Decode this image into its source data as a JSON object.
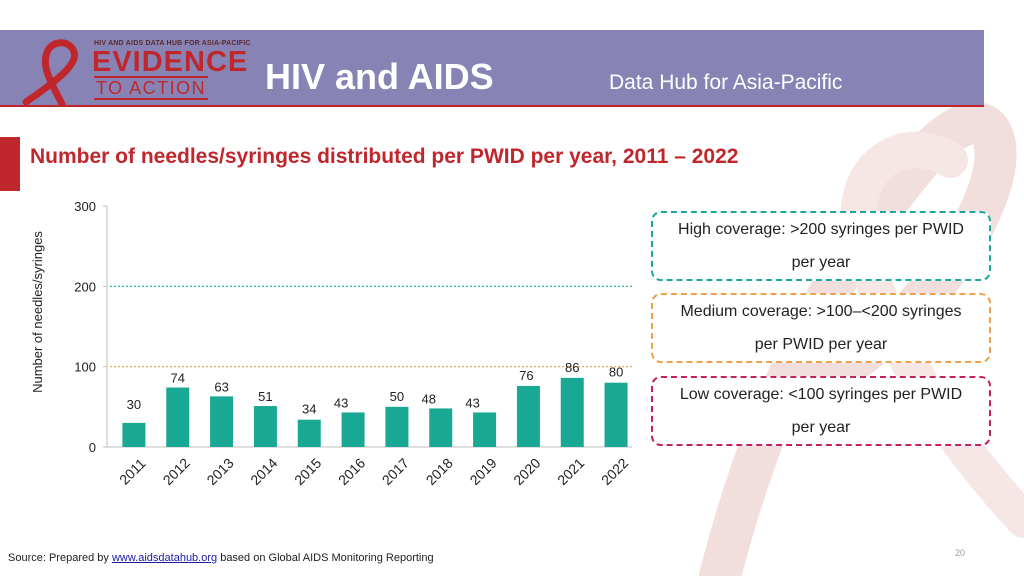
{
  "header": {
    "logo_top_text": "HIV AND AIDS DATA HUB FOR ASIA-PACIFIC",
    "logo_evidence": "EVIDENCE",
    "logo_to_action": "TO ACTION",
    "title": "HIV and AIDS",
    "subtitle": "Data Hub for Asia-Pacific"
  },
  "colors": {
    "bar": "#18a894",
    "title_red": "#c0272d",
    "header_purple": "#8784b5",
    "high_line": "#1aa89a",
    "medium_line": "#f0a04b",
    "low_border": "#c41f5e"
  },
  "chart_data": {
    "type": "bar",
    "title": "Number of needles/syringes distributed per PWID per year, 2011 – 2022",
    "xlabel": "",
    "ylabel": "Number of needles/syringes",
    "categories": [
      "2011",
      "2012",
      "2013",
      "2014",
      "2015",
      "2016",
      "2017",
      "2018",
      "2019",
      "2020",
      "2021",
      "2022"
    ],
    "values": [
      30,
      74,
      63,
      51,
      34,
      43,
      50,
      48,
      43,
      76,
      86,
      80
    ],
    "ylim": [
      0,
      300
    ],
    "yticks": [
      0,
      100,
      200,
      300
    ],
    "reference_lines": [
      {
        "name": "high",
        "value": 200
      },
      {
        "name": "medium",
        "value": 100
      }
    ],
    "grid": false
  },
  "legend": {
    "high": "High coverage: >200 syringes per PWID per year",
    "medium": "Medium coverage: >100–<200 syringes per PWID per year",
    "low": "Low coverage: <100 syringes per PWID per year"
  },
  "footer": {
    "source_prefix": "Source: Prepared by ",
    "source_link": "www.aidsdatahub.org",
    "source_suffix": " based on Global AIDS Monitoring Reporting",
    "page_number": "20"
  }
}
